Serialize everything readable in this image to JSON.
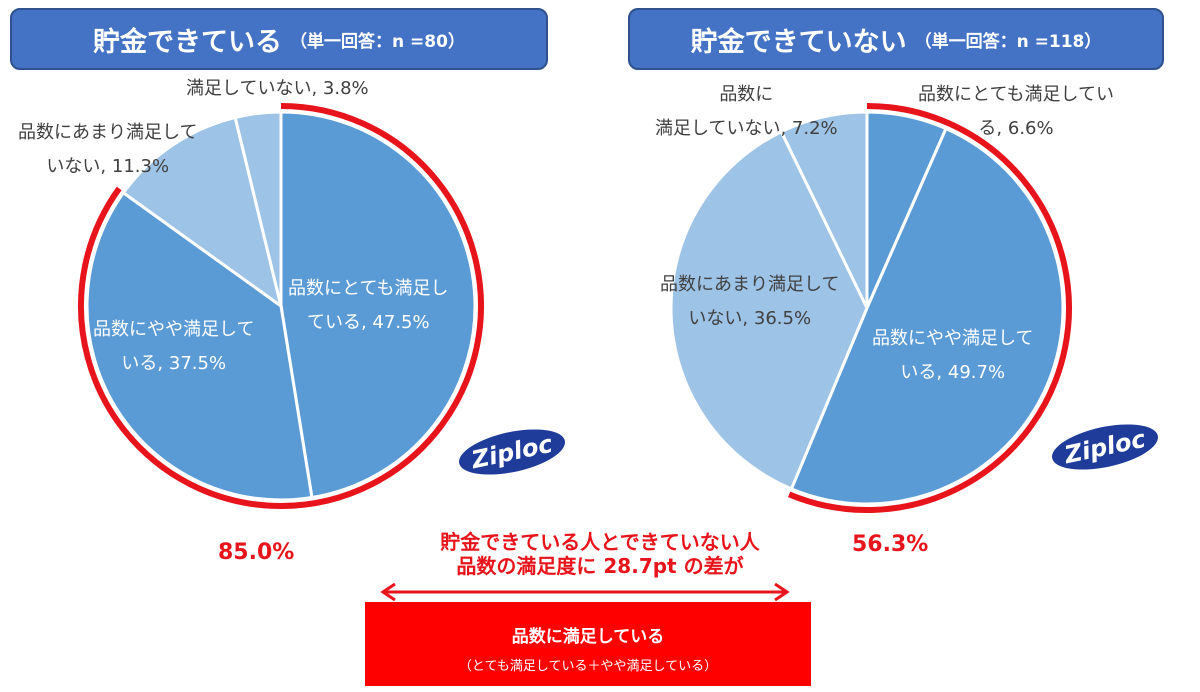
{
  "chart_data": [
    {
      "type": "pie",
      "title": "貯金できている",
      "subtitle": "（単一回答：n =80）",
      "slices": [
        {
          "label": "品数にとても満足している",
          "value": 47.5,
          "color": "#5b9bd5"
        },
        {
          "label": "品数にやや満足している",
          "value": 37.5,
          "color": "#5b9bd5"
        },
        {
          "label": "品数にあまり満足していない",
          "value": 11.3,
          "color": "#9dc3e6"
        },
        {
          "label": "満足していない",
          "value": 3.8,
          "color": "#9dc3e6"
        }
      ],
      "highlight_total": "85.0%",
      "highlight_value": 85.0
    },
    {
      "type": "pie",
      "title": "貯金できていない",
      "subtitle": "（単一回答：n =118）",
      "slices": [
        {
          "label": "品数にとても満足している",
          "value": 6.6,
          "color": "#5b9bd5"
        },
        {
          "label": "品数にやや満足している",
          "value": 49.7,
          "color": "#5b9bd5"
        },
        {
          "label": "品数にあまり満足していない",
          "value": 36.5,
          "color": "#9dc3e6"
        },
        {
          "label": "品数に満足していない",
          "value": 7.2,
          "color": "#9dc3e6"
        }
      ],
      "highlight_total": "56.3%",
      "highlight_value": 56.3
    }
  ],
  "labels": {
    "l0a": "品数にとても満足し",
    "l0b": "ている, 47.5%",
    "l1a": "品数にやや満足して",
    "l1b": "いる, 37.5%",
    "l2a": "品数にあまり満足して",
    "l2b": "いない, 11.3%",
    "l3": "満足していない, 3.8%",
    "r0a": "品数にとても満足してい",
    "r0b": "る, 6.6%",
    "r1a": "品数にやや満足して",
    "r1b": "いる, 49.7%",
    "r2a": "品数にあまり満足して",
    "r2b": "いない, 36.5%",
    "r3a": "品数に",
    "r3b": "満足していない, 7.2%"
  },
  "difference": {
    "line1": "貯金できている人とできていない人",
    "line2": "品数の満足度に 28.7pt の差が"
  },
  "box": {
    "title": "品数に満足している",
    "note": "（とても満足している＋やや満足している）"
  },
  "logo": "Ziploc",
  "colors": {
    "accent": "#e8141b",
    "header": "#4472c4"
  }
}
